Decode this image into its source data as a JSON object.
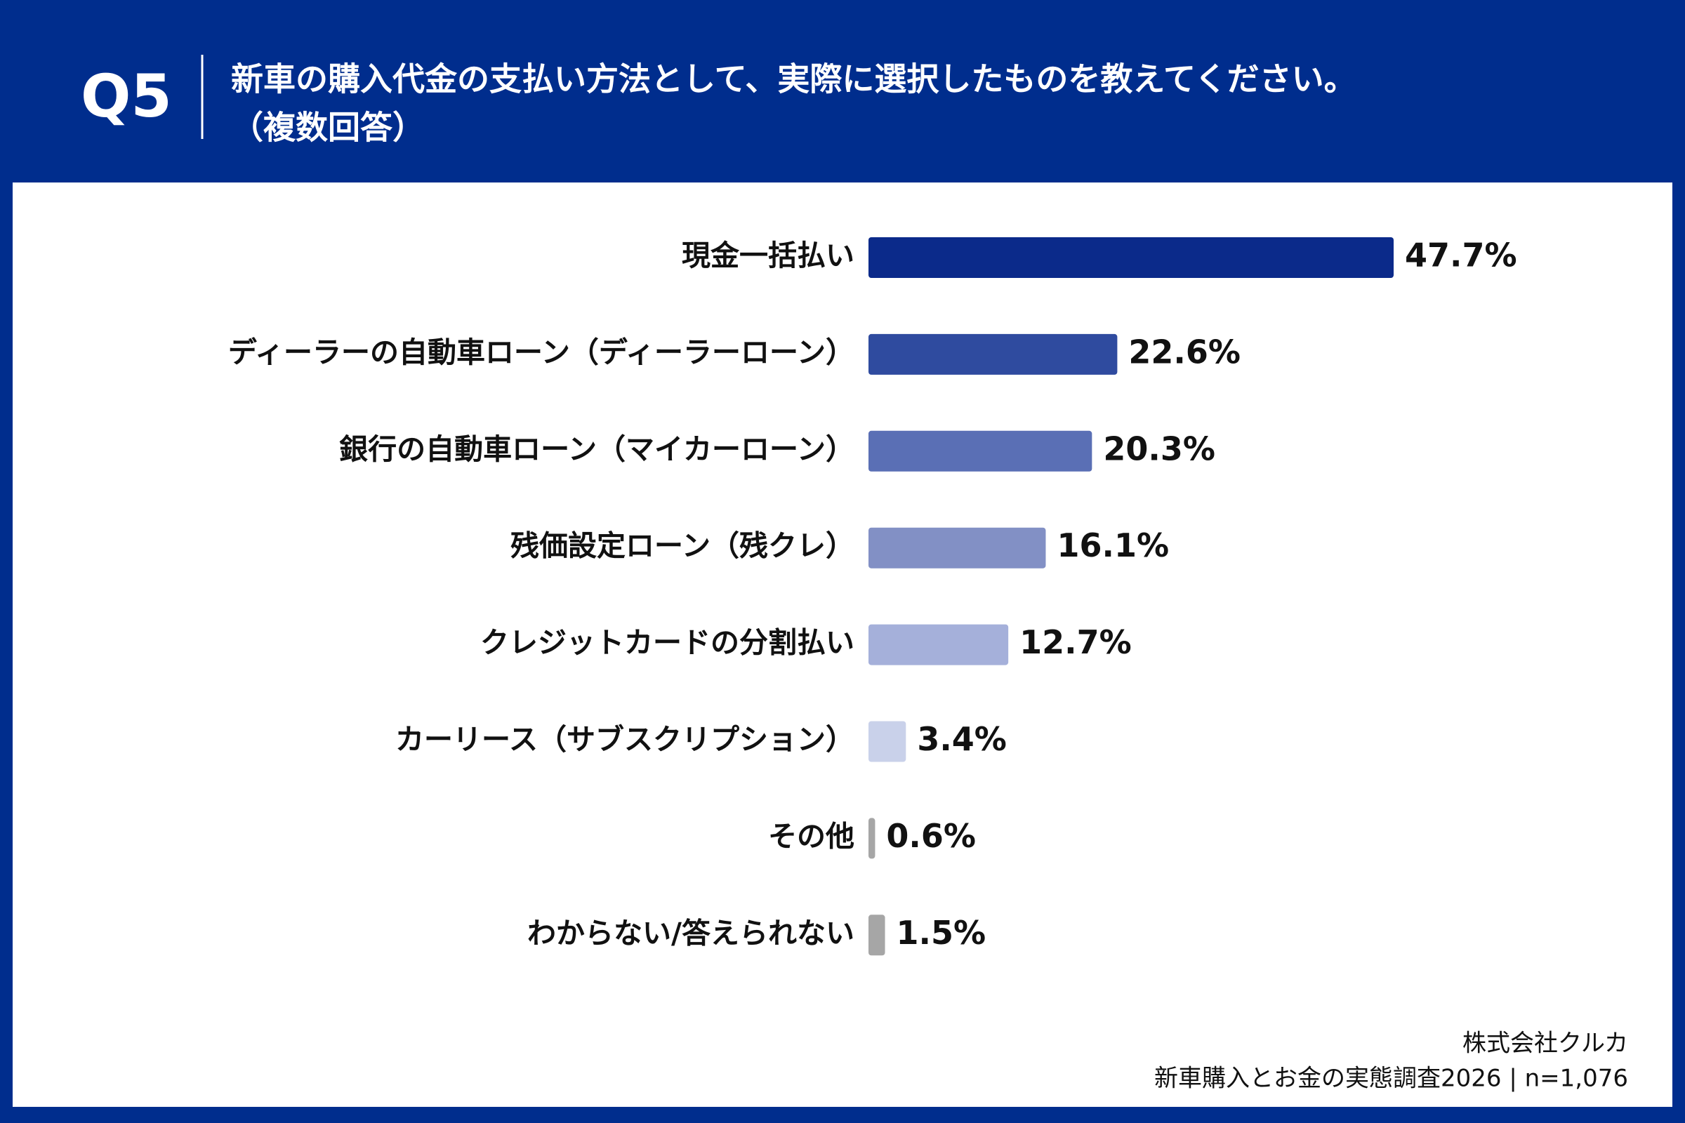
{
  "chart_data": {
    "type": "bar",
    "orientation": "horizontal",
    "question_number": "Q5",
    "title": "新車の購入代金の支払い方法として、実際に選択したものを教えてください。",
    "subtitle": "（複数回答）",
    "categories": [
      "現金一括払い",
      "ディーラーの自動車ローン（ディーラーローン）",
      "銀行の自動車ローン（マイカーローン）",
      "残価設定ローン（残クレ）",
      "クレジットカードの分割払い",
      "カーリース（サブスクリプション）",
      "その他",
      "わからない/答えられない"
    ],
    "values": [
      47.7,
      22.6,
      20.3,
      16.1,
      12.7,
      3.4,
      0.6,
      1.5
    ],
    "value_labels": [
      "47.7%",
      "22.6%",
      "20.3%",
      "16.1%",
      "12.7%",
      "3.4%",
      "0.6%",
      "1.5%"
    ],
    "colors": [
      "#0b2a8a",
      "#2f4b9f",
      "#5a6fb5",
      "#8290c5",
      "#a5b0da",
      "#c9d1ea",
      "#a6a6a6",
      "#a6a6a6"
    ],
    "source": [
      "株式会社クルカ",
      "新車購入とお金の実態調査2026 | n=1,076"
    ]
  }
}
